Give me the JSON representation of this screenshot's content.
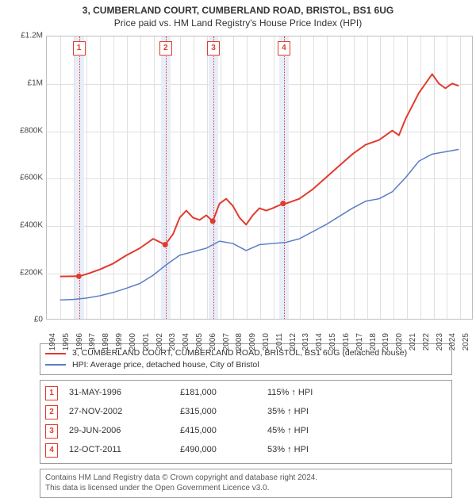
{
  "title": "3, CUMBERLAND COURT, CUMBERLAND ROAD, BRISTOL, BS1 6UG",
  "subtitle": "Price paid vs. HM Land Registry's House Price Index (HPI)",
  "chart": {
    "type": "line",
    "background_color": "#ffffff",
    "grid_color": "#e0e0e0",
    "border_color": "#bfbfbf",
    "x": {
      "min_year": 1994,
      "max_year_plus": 2026,
      "ticks": [
        1994,
        1995,
        1996,
        1997,
        1998,
        1999,
        2000,
        2001,
        2002,
        2003,
        2004,
        2005,
        2006,
        2007,
        2008,
        2009,
        2010,
        2011,
        2012,
        2013,
        2014,
        2015,
        2016,
        2017,
        2018,
        2019,
        2020,
        2021,
        2022,
        2023,
        2024,
        2025
      ],
      "label_fontsize": 10,
      "label_color": "#444444"
    },
    "y": {
      "min": 0,
      "max": 1200000,
      "ticks": [
        {
          "v": 0,
          "label": "£0"
        },
        {
          "v": 200000,
          "label": "£200K"
        },
        {
          "v": 400000,
          "label": "£400K"
        },
        {
          "v": 600000,
          "label": "£600K"
        },
        {
          "v": 800000,
          "label": "£800K"
        },
        {
          "v": 1000000,
          "label": "£1M"
        },
        {
          "v": 1200000,
          "label": "£1.2M"
        }
      ],
      "label_fontsize": 10,
      "label_color": "#444444"
    },
    "sale_band_color": "#e8eef9",
    "sale_line_color": "#e23a2e",
    "sale_marker_border": "#e23a2e",
    "sales": [
      {
        "n": "1",
        "year": 1996.41,
        "price": 181000
      },
      {
        "n": "2",
        "year": 2002.91,
        "price": 315000
      },
      {
        "n": "3",
        "year": 2006.49,
        "price": 415000
      },
      {
        "n": "4",
        "year": 2011.78,
        "price": 490000
      }
    ],
    "series_property": {
      "color": "#e23a2e",
      "width": 2,
      "marker_radius": 3.5,
      "points": [
        [
          1995.0,
          180000
        ],
        [
          1996.41,
          181000
        ],
        [
          1997.0,
          190000
        ],
        [
          1998.0,
          210000
        ],
        [
          1999.0,
          235000
        ],
        [
          2000.0,
          270000
        ],
        [
          2001.0,
          300000
        ],
        [
          2002.0,
          340000
        ],
        [
          2002.91,
          315000
        ],
        [
          2003.5,
          360000
        ],
        [
          2004.0,
          430000
        ],
        [
          2004.5,
          460000
        ],
        [
          2005.0,
          430000
        ],
        [
          2005.5,
          420000
        ],
        [
          2006.0,
          440000
        ],
        [
          2006.49,
          415000
        ],
        [
          2007.0,
          490000
        ],
        [
          2007.5,
          510000
        ],
        [
          2008.0,
          480000
        ],
        [
          2008.5,
          430000
        ],
        [
          2009.0,
          400000
        ],
        [
          2009.5,
          440000
        ],
        [
          2010.0,
          470000
        ],
        [
          2010.5,
          460000
        ],
        [
          2011.0,
          470000
        ],
        [
          2011.78,
          490000
        ],
        [
          2012.0,
          490000
        ],
        [
          2012.5,
          500000
        ],
        [
          2013.0,
          510000
        ],
        [
          2014.0,
          550000
        ],
        [
          2015.0,
          600000
        ],
        [
          2016.0,
          650000
        ],
        [
          2017.0,
          700000
        ],
        [
          2018.0,
          740000
        ],
        [
          2019.0,
          760000
        ],
        [
          2020.0,
          800000
        ],
        [
          2020.5,
          780000
        ],
        [
          2021.0,
          850000
        ],
        [
          2022.0,
          960000
        ],
        [
          2022.5,
          1000000
        ],
        [
          2023.0,
          1040000
        ],
        [
          2023.5,
          1000000
        ],
        [
          2024.0,
          980000
        ],
        [
          2024.5,
          1000000
        ],
        [
          2025.0,
          990000
        ]
      ]
    },
    "series_hpi": {
      "color": "#5b7ec4",
      "width": 1.5,
      "points": [
        [
          1995.0,
          80000
        ],
        [
          1996.0,
          82000
        ],
        [
          1997.0,
          88000
        ],
        [
          1998.0,
          98000
        ],
        [
          1999.0,
          112000
        ],
        [
          2000.0,
          130000
        ],
        [
          2001.0,
          150000
        ],
        [
          2002.0,
          185000
        ],
        [
          2003.0,
          230000
        ],
        [
          2004.0,
          270000
        ],
        [
          2005.0,
          285000
        ],
        [
          2006.0,
          300000
        ],
        [
          2007.0,
          330000
        ],
        [
          2008.0,
          320000
        ],
        [
          2009.0,
          290000
        ],
        [
          2010.0,
          315000
        ],
        [
          2011.0,
          320000
        ],
        [
          2012.0,
          325000
        ],
        [
          2013.0,
          340000
        ],
        [
          2014.0,
          370000
        ],
        [
          2015.0,
          400000
        ],
        [
          2016.0,
          435000
        ],
        [
          2017.0,
          470000
        ],
        [
          2018.0,
          500000
        ],
        [
          2019.0,
          510000
        ],
        [
          2020.0,
          540000
        ],
        [
          2021.0,
          600000
        ],
        [
          2022.0,
          670000
        ],
        [
          2023.0,
          700000
        ],
        [
          2024.0,
          710000
        ],
        [
          2025.0,
          720000
        ]
      ]
    }
  },
  "legend": {
    "items": [
      {
        "color": "#e23a2e",
        "label": "3, CUMBERLAND COURT, CUMBERLAND ROAD, BRISTOL, BS1 6UG (detached house)"
      },
      {
        "color": "#5b7ec4",
        "label": "HPI: Average price, detached house, City of Bristol"
      }
    ]
  },
  "sales_table": {
    "arrow": "↑",
    "suffix": " HPI",
    "rows": [
      {
        "n": "1",
        "date": "31-MAY-1996",
        "price": "£181,000",
        "pct": "115%"
      },
      {
        "n": "2",
        "date": "27-NOV-2002",
        "price": "£315,000",
        "pct": "35%"
      },
      {
        "n": "3",
        "date": "29-JUN-2006",
        "price": "£415,000",
        "pct": "45%"
      },
      {
        "n": "4",
        "date": "12-OCT-2011",
        "price": "£490,000",
        "pct": "53%"
      }
    ]
  },
  "footer": {
    "line1": "Contains HM Land Registry data © Crown copyright and database right 2024.",
    "line2": "This data is licensed under the Open Government Licence v3.0."
  }
}
